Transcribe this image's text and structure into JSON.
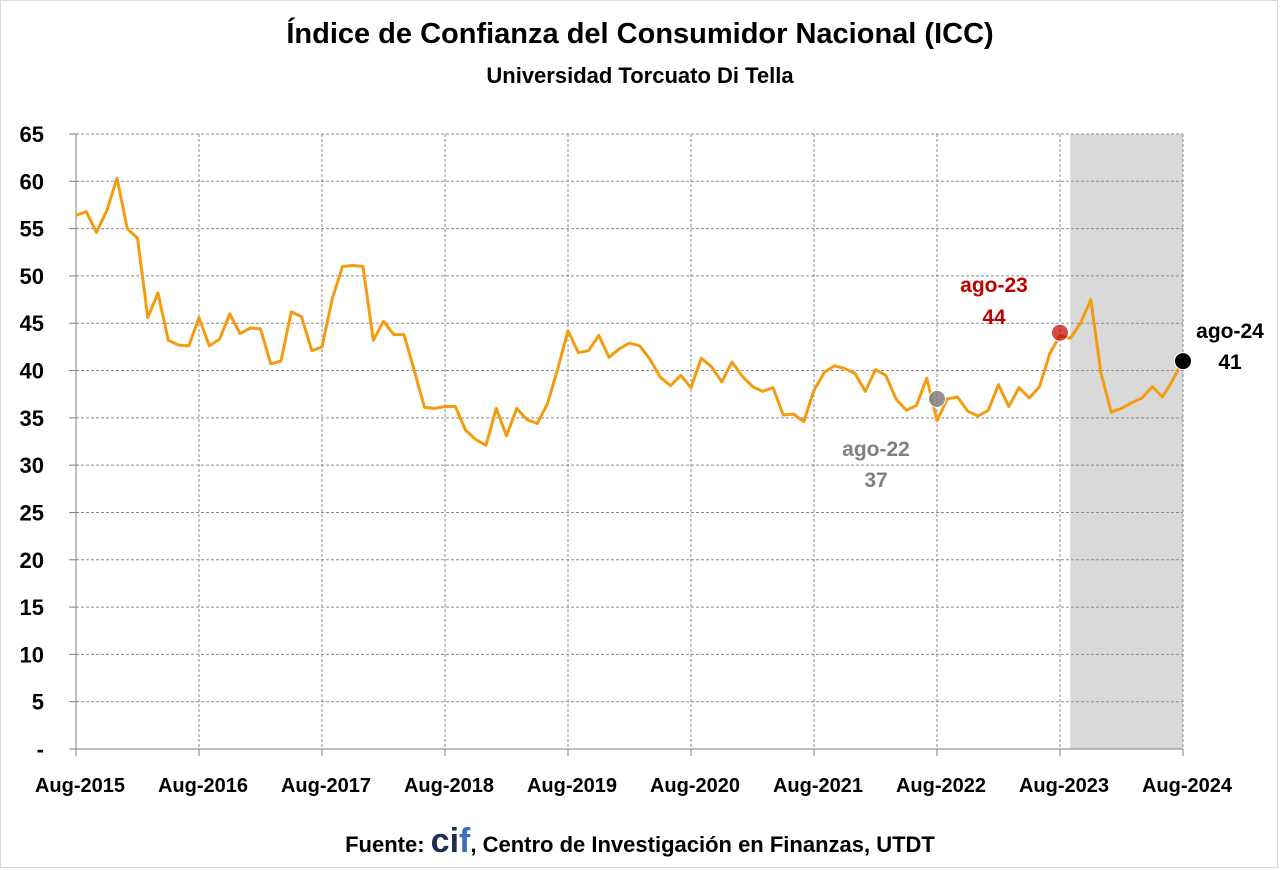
{
  "header": {
    "title": "Índice de Confianza del Consumidor Nacional (ICC)",
    "subtitle": "Universidad Torcuato Di Tella"
  },
  "footer": {
    "prefix": "Fuente: ",
    "logo_c": "ci",
    "logo_f": "f",
    "suffix": ", Centro de Investigación en Finanzas, UTDT"
  },
  "chart_data": {
    "type": "line",
    "title": "Índice de Confianza del Consumidor Nacional (ICC)",
    "subtitle": "Universidad Torcuato Di Tella",
    "ylim": [
      0,
      65
    ],
    "y_ticks": [
      "-",
      "5",
      "10",
      "15",
      "20",
      "25",
      "30",
      "35",
      "40",
      "45",
      "50",
      "55",
      "60",
      "65"
    ],
    "x_ticks": [
      "Aug-2015",
      "Aug-2016",
      "Aug-2017",
      "Aug-2018",
      "Aug-2019",
      "Aug-2020",
      "Aug-2021",
      "Aug-2022",
      "Aug-2023",
      "Aug-2024"
    ],
    "x_start": "2015-08",
    "x_end": "2024-08",
    "grid": true,
    "line_color": "#f39c12",
    "shaded_region": {
      "from": "2023-09",
      "to": "2024-08",
      "color": "#d9d9d9"
    },
    "series": [
      {
        "values": [
          56.4,
          56.8,
          54.6,
          56.9,
          60.3,
          55.0,
          54.0,
          45.6,
          48.2,
          43.2,
          42.7,
          42.6,
          45.6,
          42.6,
          43.3,
          46.0,
          43.9,
          44.5,
          44.4,
          40.7,
          41.0,
          46.2,
          45.7,
          42.1,
          42.5,
          47.6,
          51.0,
          51.1,
          51.0,
          43.2,
          45.2,
          43.8,
          43.8,
          40.0,
          36.1,
          36.0,
          36.2,
          36.2,
          33.7,
          32.7,
          32.1,
          36.0,
          33.1,
          36.0,
          34.8,
          34.4,
          36.5,
          40.2,
          44.2,
          41.9,
          42.1,
          43.7,
          41.4,
          42.3,
          42.9,
          42.6,
          41.2,
          39.3,
          38.4,
          39.5,
          38.2,
          41.3,
          40.4,
          38.8,
          40.9,
          39.4,
          38.3,
          37.8,
          38.2,
          35.3,
          35.4,
          34.6,
          37.9,
          39.8,
          40.5,
          40.2,
          39.7,
          37.8,
          40.1,
          39.5,
          37.0,
          35.8,
          36.3,
          39.2,
          34.7,
          37.0,
          37.2,
          35.7,
          35.2,
          35.8,
          38.5,
          36.2,
          38.2,
          37.1,
          38.3,
          41.8,
          43.7,
          43.4,
          45.0,
          47.5,
          39.7,
          35.6,
          36.0,
          36.6,
          37.1,
          38.3,
          37.2,
          39.0,
          41.2
        ]
      }
    ],
    "highlights": [
      {
        "date": "2022-08",
        "value": 37,
        "label": "ago-22",
        "value_label": "37",
        "color": "#808080"
      },
      {
        "date": "2023-08",
        "value": 44,
        "label": "ago-23",
        "value_label": "44",
        "color": "#c00000"
      },
      {
        "date": "2024-08",
        "value": 41,
        "label": "ago-24",
        "value_label": "41",
        "color": "#000000"
      }
    ]
  }
}
